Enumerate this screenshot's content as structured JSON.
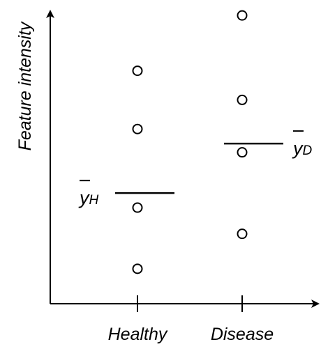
{
  "chart_data": {
    "type": "scatter",
    "title": "",
    "xlabel": "",
    "ylabel": "Feature intensity",
    "categories": [
      "Healthy",
      "Disease"
    ],
    "series": [
      {
        "values": [
          [
            0.8
          ],
          [
            0.6
          ],
          [
            0.33
          ],
          [
            0.12
          ]
        ],
        "points": [
          0.8,
          0.6,
          0.33,
          0.12
        ]
      },
      {
        "points": [
          0.99,
          0.7,
          0.52,
          0.24
        ]
      }
    ],
    "means": [
      {
        "category": "Healthy",
        "value": 0.38,
        "label": "y",
        "subscript": "H"
      },
      {
        "category": "Disease",
        "value": 0.55,
        "label": "y",
        "subscript": "D"
      }
    ],
    "ylim": [
      0,
      1
    ],
    "grid": false,
    "axis_ticks": false
  }
}
